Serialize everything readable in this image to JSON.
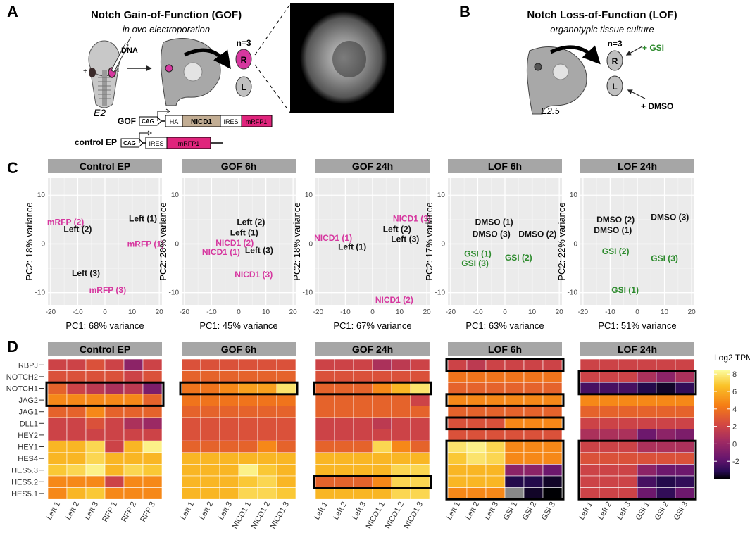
{
  "panel_a": {
    "label": "A",
    "title": "Notch Gain-of-Function (GOF)",
    "subtitle": "in ovo electroporation",
    "dna_label": "DNA",
    "plus_sign": "+",
    "minus_sign": "-",
    "stage": "E2",
    "n_label": "n=3",
    "right_label": "R",
    "left_label": "L",
    "gof_label": "GOF",
    "control_label": "control EP",
    "gof_construct": [
      "CAG",
      "HA",
      "NICD1",
      "IRES",
      "mRFP1"
    ],
    "control_construct": [
      "CAG",
      "IRES",
      "mRFP1"
    ]
  },
  "panel_b": {
    "label": "B",
    "title": "Notch Loss-of-Function (LOF)",
    "subtitle": "organotypic tissue culture",
    "stage": "E2.5",
    "n_label": "n=3",
    "right_label": "R",
    "left_label": "L",
    "gsi_label": "+ GSI",
    "dmso_label": "+ DMSO"
  },
  "colors": {
    "magenta": "#d6379f",
    "green": "#2e8b2e",
    "facet_strip": "#a6a6a6",
    "panel_bg": "#ebebeb",
    "nicd_box": "#c2ad93",
    "rfp_box": "#e0247c"
  },
  "panel_c": {
    "label": "C",
    "xlabel_prefix": "PC1:",
    "ylabel_prefix": "PC2:",
    "axis_ticks_x": [
      "-20",
      "-10",
      "0",
      "10",
      "20"
    ],
    "axis_ticks_y": [
      "10",
      "0",
      "-10"
    ],
    "chart_data": [
      {
        "type": "scatter",
        "title": "Control EP",
        "xlabel": "PC1: 68% variance",
        "ylabel": "PC2: 18% variance",
        "xlim": [
          -21,
          21
        ],
        "ylim": [
          -12.5,
          13.5
        ],
        "points": [
          {
            "label": "mRFP (2)",
            "x": -14.5,
            "y": 4.5,
            "group": "magenta"
          },
          {
            "label": "Left (2)",
            "x": -10,
            "y": 3,
            "group": "black"
          },
          {
            "label": "Left (1)",
            "x": 14,
            "y": 5.2,
            "group": "black"
          },
          {
            "label": "mRFP (1)",
            "x": 15,
            "y": 0,
            "group": "magenta"
          },
          {
            "label": "Left (3)",
            "x": -7,
            "y": -6,
            "group": "black"
          },
          {
            "label": "mRFP (3)",
            "x": 1,
            "y": -9.5,
            "group": "magenta"
          }
        ]
      },
      {
        "type": "scatter",
        "title": "GOF 6h",
        "xlabel": "PC1: 45% variance",
        "ylabel": "PC2: 28% variance",
        "xlim": [
          -21,
          21
        ],
        "ylim": [
          -12.5,
          13.5
        ],
        "points": [
          {
            "label": "Left (2)",
            "x": 4.5,
            "y": 4.5,
            "group": "black"
          },
          {
            "label": "Left (1)",
            "x": 2,
            "y": 2.3,
            "group": "black"
          },
          {
            "label": "NICD1 (2)",
            "x": -1.5,
            "y": 0.2,
            "group": "magenta"
          },
          {
            "label": "NICD1 (1)",
            "x": -6.5,
            "y": -1.7,
            "group": "magenta"
          },
          {
            "label": "Left (3)",
            "x": 7.5,
            "y": -1.3,
            "group": "black"
          },
          {
            "label": "NICD1 (3)",
            "x": 5.5,
            "y": -6.3,
            "group": "magenta"
          }
        ]
      },
      {
        "type": "scatter",
        "title": "GOF 24h",
        "xlabel": "PC1: 67% variance",
        "ylabel": "PC2: 18% variance",
        "xlim": [
          -21,
          21
        ],
        "ylim": [
          -12.5,
          13.5
        ],
        "points": [
          {
            "label": "NICD1 (3)",
            "x": 14.5,
            "y": 5.2,
            "group": "magenta"
          },
          {
            "label": "Left (2)",
            "x": 9,
            "y": 3,
            "group": "black"
          },
          {
            "label": "Left (3)",
            "x": 12,
            "y": 1,
            "group": "black"
          },
          {
            "label": "NICD1 (1)",
            "x": -14.5,
            "y": 1.2,
            "group": "magenta"
          },
          {
            "label": "Left (1)",
            "x": -7.5,
            "y": -0.6,
            "group": "black"
          },
          {
            "label": "NICD1 (2)",
            "x": 8,
            "y": -11.5,
            "group": "magenta"
          }
        ]
      },
      {
        "type": "scatter",
        "title": "LOF 6h",
        "xlabel": "PC1: 63% variance",
        "ylabel": "PC2: 17% variance",
        "xlim": [
          -21,
          21
        ],
        "ylim": [
          -12.5,
          13.5
        ],
        "points": [
          {
            "label": "DMSO (1)",
            "x": -4,
            "y": 4.5,
            "group": "black"
          },
          {
            "label": "DMSO (3)",
            "x": -5,
            "y": 2,
            "group": "black"
          },
          {
            "label": "DMSO (2)",
            "x": 12,
            "y": 2,
            "group": "black"
          },
          {
            "label": "GSI (1)",
            "x": -10,
            "y": -2,
            "group": "green"
          },
          {
            "label": "GSI (3)",
            "x": -11,
            "y": -4,
            "group": "green"
          },
          {
            "label": "GSI (2)",
            "x": 5,
            "y": -2.8,
            "group": "green"
          }
        ]
      },
      {
        "type": "scatter",
        "title": "LOF 24h",
        "xlabel": "PC1: 51% variance",
        "ylabel": "PC2: 22% variance",
        "xlim": [
          -21,
          21
        ],
        "ylim": [
          -12.5,
          13.5
        ],
        "points": [
          {
            "label": "DMSO (2)",
            "x": -8,
            "y": 5,
            "group": "black"
          },
          {
            "label": "DMSO (3)",
            "x": 12,
            "y": 5.5,
            "group": "black"
          },
          {
            "label": "DMSO (1)",
            "x": -9,
            "y": 2.8,
            "group": "black"
          },
          {
            "label": "GSI (2)",
            "x": -8,
            "y": -1.5,
            "group": "green"
          },
          {
            "label": "GSI (3)",
            "x": 10,
            "y": -3,
            "group": "green"
          },
          {
            "label": "GSI (1)",
            "x": -4.5,
            "y": -9.5,
            "group": "green"
          }
        ]
      }
    ]
  },
  "panel_d": {
    "label": "D",
    "genes": [
      "RBPJ",
      "NOTCH2",
      "NOTCH1",
      "JAG2",
      "JAG1",
      "DLL1",
      "HEY2",
      "HEY1",
      "HES4",
      "HES5.3",
      "HES5.2",
      "HES5.1"
    ],
    "legend_title": "Log2 TPM",
    "legend_ticks": [
      "8",
      "6",
      "4",
      "2",
      "0",
      "-2"
    ],
    "legend_range": [
      -4,
      8.5
    ],
    "chart_data": [
      {
        "type": "heatmap",
        "title": "Control EP",
        "columns": [
          "Left 1",
          "Left 2",
          "Left 3",
          "RFP 1",
          "RFP 2",
          "RFP 3"
        ],
        "values": [
          [
            3,
            3,
            3.5,
            3,
            1,
            3
          ],
          [
            3.5,
            3.5,
            3.5,
            3.5,
            3,
            3.5
          ],
          [
            4,
            3,
            2.5,
            2,
            2.5,
            0.5
          ],
          [
            5,
            5,
            5,
            5,
            5,
            4
          ],
          [
            4,
            4,
            5,
            4,
            4,
            4
          ],
          [
            3,
            3,
            3.5,
            3,
            2,
            1.5
          ],
          [
            3,
            3,
            3,
            3,
            3,
            3
          ],
          [
            6,
            6,
            7,
            3,
            6,
            8
          ],
          [
            6,
            6,
            7,
            6,
            6,
            6
          ],
          [
            6.5,
            7,
            8,
            6,
            7,
            6.5
          ],
          [
            5,
            5,
            5,
            3,
            5,
            5
          ],
          [
            5,
            6,
            6.5,
            5,
            5,
            5
          ]
        ],
        "boxes": [
          [
            2,
            3
          ]
        ]
      },
      {
        "type": "heatmap",
        "title": "GOF 6h",
        "columns": [
          "Left 1",
          "Left 2",
          "Left 3",
          "NICD1 1",
          "NICD1 2",
          "NICD1 3"
        ],
        "values": [
          [
            3.5,
            3.5,
            3.5,
            3.5,
            3.5,
            3.5
          ],
          [
            4,
            4,
            4,
            4,
            4,
            4
          ],
          [
            4.5,
            4.5,
            5,
            5.5,
            5.5,
            7.5
          ],
          [
            4.5,
            4.5,
            4.5,
            4.5,
            4.5,
            4.5
          ],
          [
            4,
            4,
            4,
            4,
            4,
            4
          ],
          [
            3.5,
            3.5,
            3.5,
            3.5,
            3.5,
            3.5
          ],
          [
            3.5,
            3.5,
            3.5,
            3.5,
            3.5,
            3.5
          ],
          [
            4,
            4,
            4,
            4,
            5,
            4
          ],
          [
            6,
            6,
            6,
            6,
            6,
            6
          ],
          [
            6,
            6,
            6,
            8,
            6.5,
            6
          ],
          [
            6,
            6,
            6,
            6.5,
            7,
            6
          ],
          [
            6,
            6,
            6,
            7,
            7,
            6.5
          ]
        ],
        "boxes": [
          [
            2,
            2
          ]
        ]
      },
      {
        "type": "heatmap",
        "title": "GOF 24h",
        "columns": [
          "Left 1",
          "Left 2",
          "Left 3",
          "NICD1 1",
          "NICD1 2",
          "NICD1 3"
        ],
        "values": [
          [
            3,
            3,
            3,
            2,
            2.5,
            3
          ],
          [
            3.5,
            3.5,
            3.5,
            3.5,
            3.5,
            3.5
          ],
          [
            4,
            4,
            4,
            5,
            6,
            7.5
          ],
          [
            4,
            4,
            4,
            4,
            4,
            3
          ],
          [
            4,
            4,
            4,
            4,
            4,
            4
          ],
          [
            3,
            3,
            3,
            2.5,
            3,
            3
          ],
          [
            3,
            3,
            3,
            3,
            3,
            3
          ],
          [
            4,
            4,
            4,
            7,
            5,
            4
          ],
          [
            6,
            6,
            6,
            6,
            6,
            6
          ],
          [
            6,
            6,
            6,
            6,
            7,
            7
          ],
          [
            4,
            4,
            4,
            5,
            7,
            7
          ],
          [
            6,
            6,
            6,
            6,
            7,
            7
          ]
        ],
        "boxes": [
          [
            2,
            2
          ],
          [
            10,
            10
          ]
        ]
      },
      {
        "type": "heatmap",
        "title": "LOF 6h",
        "columns": [
          "Left 1",
          "Left 2",
          "Left 3",
          "GSI 1",
          "GSI 2",
          "GSI 3"
        ],
        "values": [
          [
            3,
            2.5,
            3,
            3,
            3,
            3
          ],
          [
            4.5,
            4.5,
            4.5,
            4.5,
            4.5,
            4.5
          ],
          [
            4,
            4,
            4,
            4,
            4,
            4
          ],
          [
            5,
            5,
            5,
            5,
            5,
            5
          ],
          [
            4,
            4,
            4,
            4,
            4,
            4
          ],
          [
            3.5,
            3.5,
            3.5,
            5,
            5,
            5
          ],
          [
            3.5,
            3.5,
            3.5,
            3.5,
            3.5,
            3.5
          ],
          [
            7.5,
            8,
            7,
            5,
            5,
            5
          ],
          [
            6.5,
            7.5,
            7,
            5,
            5,
            5
          ],
          [
            6,
            6,
            6,
            1,
            1,
            0
          ],
          [
            6,
            6,
            6,
            -2,
            -2,
            -3
          ],
          [
            5,
            5,
            5,
            null,
            -3,
            -4
          ]
        ],
        "boxes": [
          [
            0,
            0
          ],
          [
            3,
            3
          ],
          [
            5,
            5
          ],
          [
            7,
            11
          ]
        ]
      },
      {
        "type": "heatmap",
        "title": "LOF 24h",
        "columns": [
          "Left 1",
          "Left 2",
          "Left 3",
          "GSI 1",
          "GSI 2",
          "GSI 3"
        ],
        "values": [
          [
            3,
            3,
            3,
            3,
            3,
            3
          ],
          [
            3,
            3,
            3,
            2,
            1,
            2
          ],
          [
            -1,
            -1,
            -1,
            -2,
            -3,
            -1.5
          ],
          [
            5,
            5,
            5,
            5,
            5,
            5
          ],
          [
            4,
            4,
            4,
            4,
            4,
            4
          ],
          [
            3,
            3,
            3,
            3,
            3,
            3
          ],
          [
            2,
            2,
            2,
            0,
            1,
            0.5
          ],
          [
            3,
            3,
            3,
            2,
            2,
            2
          ],
          [
            3.5,
            3.5,
            3.5,
            3.5,
            3.5,
            3.5
          ],
          [
            3,
            3,
            3,
            1,
            0,
            0
          ],
          [
            3,
            3,
            3,
            -1,
            -2,
            -1.5
          ],
          [
            3,
            3,
            3,
            0,
            -1.5,
            0
          ]
        ],
        "boxes": [
          [
            1,
            2
          ],
          [
            7,
            11
          ]
        ]
      }
    ]
  }
}
